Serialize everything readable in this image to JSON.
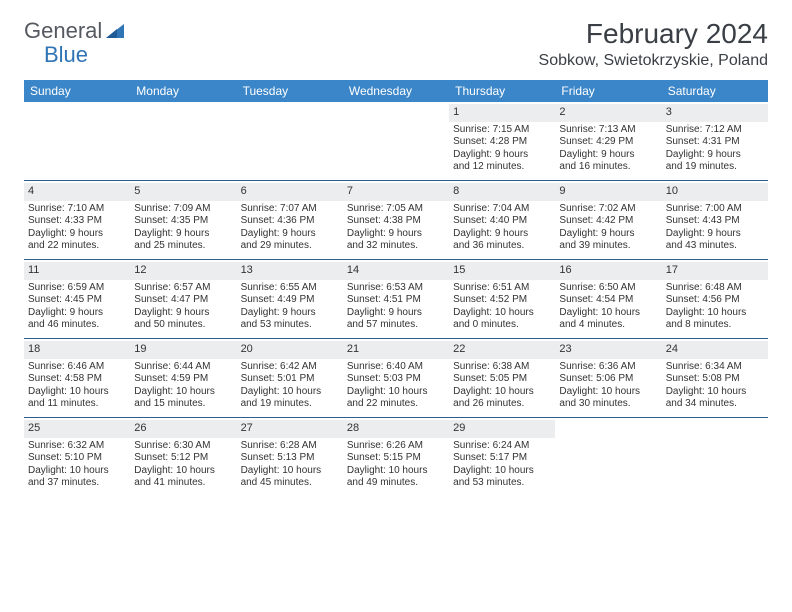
{
  "brand": {
    "part1": "General",
    "part2": "Blue"
  },
  "title": "February 2024",
  "location": "Sobkow, Swietokrzyskie, Poland",
  "colors": {
    "header_bg": "#3b86c8",
    "header_text": "#ffffff",
    "daynum_bg": "#ebedef",
    "week_divider": "#2f5e8e",
    "body_text": "#333333",
    "title_text": "#3a3f46"
  },
  "dow": [
    "Sunday",
    "Monday",
    "Tuesday",
    "Wednesday",
    "Thursday",
    "Friday",
    "Saturday"
  ],
  "weeks": [
    [
      {
        "n": "",
        "sr": "",
        "ss": "",
        "d1": "",
        "d2": ""
      },
      {
        "n": "",
        "sr": "",
        "ss": "",
        "d1": "",
        "d2": ""
      },
      {
        "n": "",
        "sr": "",
        "ss": "",
        "d1": "",
        "d2": ""
      },
      {
        "n": "",
        "sr": "",
        "ss": "",
        "d1": "",
        "d2": ""
      },
      {
        "n": "1",
        "sr": "Sunrise: 7:15 AM",
        "ss": "Sunset: 4:28 PM",
        "d1": "Daylight: 9 hours",
        "d2": "and 12 minutes."
      },
      {
        "n": "2",
        "sr": "Sunrise: 7:13 AM",
        "ss": "Sunset: 4:29 PM",
        "d1": "Daylight: 9 hours",
        "d2": "and 16 minutes."
      },
      {
        "n": "3",
        "sr": "Sunrise: 7:12 AM",
        "ss": "Sunset: 4:31 PM",
        "d1": "Daylight: 9 hours",
        "d2": "and 19 minutes."
      }
    ],
    [
      {
        "n": "4",
        "sr": "Sunrise: 7:10 AM",
        "ss": "Sunset: 4:33 PM",
        "d1": "Daylight: 9 hours",
        "d2": "and 22 minutes."
      },
      {
        "n": "5",
        "sr": "Sunrise: 7:09 AM",
        "ss": "Sunset: 4:35 PM",
        "d1": "Daylight: 9 hours",
        "d2": "and 25 minutes."
      },
      {
        "n": "6",
        "sr": "Sunrise: 7:07 AM",
        "ss": "Sunset: 4:36 PM",
        "d1": "Daylight: 9 hours",
        "d2": "and 29 minutes."
      },
      {
        "n": "7",
        "sr": "Sunrise: 7:05 AM",
        "ss": "Sunset: 4:38 PM",
        "d1": "Daylight: 9 hours",
        "d2": "and 32 minutes."
      },
      {
        "n": "8",
        "sr": "Sunrise: 7:04 AM",
        "ss": "Sunset: 4:40 PM",
        "d1": "Daylight: 9 hours",
        "d2": "and 36 minutes."
      },
      {
        "n": "9",
        "sr": "Sunrise: 7:02 AM",
        "ss": "Sunset: 4:42 PM",
        "d1": "Daylight: 9 hours",
        "d2": "and 39 minutes."
      },
      {
        "n": "10",
        "sr": "Sunrise: 7:00 AM",
        "ss": "Sunset: 4:43 PM",
        "d1": "Daylight: 9 hours",
        "d2": "and 43 minutes."
      }
    ],
    [
      {
        "n": "11",
        "sr": "Sunrise: 6:59 AM",
        "ss": "Sunset: 4:45 PM",
        "d1": "Daylight: 9 hours",
        "d2": "and 46 minutes."
      },
      {
        "n": "12",
        "sr": "Sunrise: 6:57 AM",
        "ss": "Sunset: 4:47 PM",
        "d1": "Daylight: 9 hours",
        "d2": "and 50 minutes."
      },
      {
        "n": "13",
        "sr": "Sunrise: 6:55 AM",
        "ss": "Sunset: 4:49 PM",
        "d1": "Daylight: 9 hours",
        "d2": "and 53 minutes."
      },
      {
        "n": "14",
        "sr": "Sunrise: 6:53 AM",
        "ss": "Sunset: 4:51 PM",
        "d1": "Daylight: 9 hours",
        "d2": "and 57 minutes."
      },
      {
        "n": "15",
        "sr": "Sunrise: 6:51 AM",
        "ss": "Sunset: 4:52 PM",
        "d1": "Daylight: 10 hours",
        "d2": "and 0 minutes."
      },
      {
        "n": "16",
        "sr": "Sunrise: 6:50 AM",
        "ss": "Sunset: 4:54 PM",
        "d1": "Daylight: 10 hours",
        "d2": "and 4 minutes."
      },
      {
        "n": "17",
        "sr": "Sunrise: 6:48 AM",
        "ss": "Sunset: 4:56 PM",
        "d1": "Daylight: 10 hours",
        "d2": "and 8 minutes."
      }
    ],
    [
      {
        "n": "18",
        "sr": "Sunrise: 6:46 AM",
        "ss": "Sunset: 4:58 PM",
        "d1": "Daylight: 10 hours",
        "d2": "and 11 minutes."
      },
      {
        "n": "19",
        "sr": "Sunrise: 6:44 AM",
        "ss": "Sunset: 4:59 PM",
        "d1": "Daylight: 10 hours",
        "d2": "and 15 minutes."
      },
      {
        "n": "20",
        "sr": "Sunrise: 6:42 AM",
        "ss": "Sunset: 5:01 PM",
        "d1": "Daylight: 10 hours",
        "d2": "and 19 minutes."
      },
      {
        "n": "21",
        "sr": "Sunrise: 6:40 AM",
        "ss": "Sunset: 5:03 PM",
        "d1": "Daylight: 10 hours",
        "d2": "and 22 minutes."
      },
      {
        "n": "22",
        "sr": "Sunrise: 6:38 AM",
        "ss": "Sunset: 5:05 PM",
        "d1": "Daylight: 10 hours",
        "d2": "and 26 minutes."
      },
      {
        "n": "23",
        "sr": "Sunrise: 6:36 AM",
        "ss": "Sunset: 5:06 PM",
        "d1": "Daylight: 10 hours",
        "d2": "and 30 minutes."
      },
      {
        "n": "24",
        "sr": "Sunrise: 6:34 AM",
        "ss": "Sunset: 5:08 PM",
        "d1": "Daylight: 10 hours",
        "d2": "and 34 minutes."
      }
    ],
    [
      {
        "n": "25",
        "sr": "Sunrise: 6:32 AM",
        "ss": "Sunset: 5:10 PM",
        "d1": "Daylight: 10 hours",
        "d2": "and 37 minutes."
      },
      {
        "n": "26",
        "sr": "Sunrise: 6:30 AM",
        "ss": "Sunset: 5:12 PM",
        "d1": "Daylight: 10 hours",
        "d2": "and 41 minutes."
      },
      {
        "n": "27",
        "sr": "Sunrise: 6:28 AM",
        "ss": "Sunset: 5:13 PM",
        "d1": "Daylight: 10 hours",
        "d2": "and 45 minutes."
      },
      {
        "n": "28",
        "sr": "Sunrise: 6:26 AM",
        "ss": "Sunset: 5:15 PM",
        "d1": "Daylight: 10 hours",
        "d2": "and 49 minutes."
      },
      {
        "n": "29",
        "sr": "Sunrise: 6:24 AM",
        "ss": "Sunset: 5:17 PM",
        "d1": "Daylight: 10 hours",
        "d2": "and 53 minutes."
      },
      {
        "n": "",
        "sr": "",
        "ss": "",
        "d1": "",
        "d2": ""
      },
      {
        "n": "",
        "sr": "",
        "ss": "",
        "d1": "",
        "d2": ""
      }
    ]
  ]
}
